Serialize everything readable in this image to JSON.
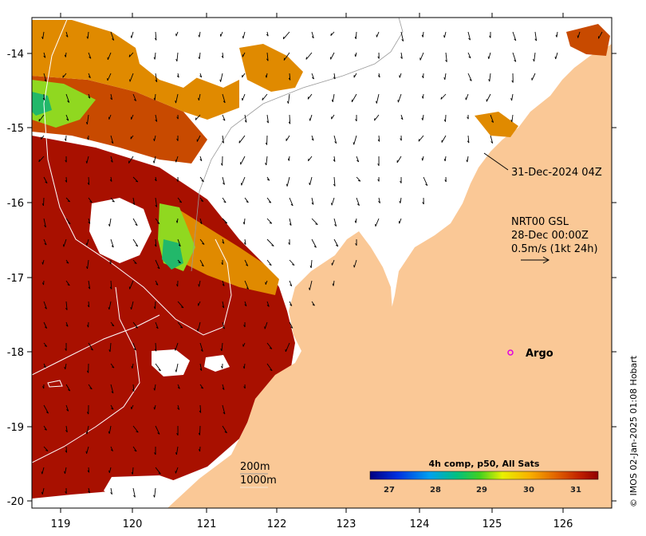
{
  "map": {
    "x_ticks": [
      "119",
      "120",
      "121",
      "122",
      "123",
      "124",
      "125",
      "126"
    ],
    "y_ticks": [
      "-14",
      "-15",
      "-16",
      "-17",
      "-18",
      "-19",
      "-20"
    ],
    "colors": {
      "land": "#fac896",
      "sst_hot": "#a81000",
      "sst_warm": "#c84a00",
      "sst_mid": "#e08a00",
      "sst_cool": "#90d820",
      "sst_cold": "#22b86a",
      "cloud": "#ffffff",
      "argo_marker": "#e000e0"
    }
  },
  "annotations": {
    "track_time": "31-Dec-2024 04Z",
    "current_product": "NRT00 GSL",
    "current_time": "28-Dec 00:00Z",
    "current_scale": "0.5m/s (1kt 24h)",
    "argo": "Argo",
    "isobath_200": "200m",
    "isobath_1000": "1000m"
  },
  "colorbar": {
    "title": "4h comp, p50, All Sats",
    "ticks": [
      "27",
      "28",
      "29",
      "30",
      "31"
    ]
  },
  "credit": "© IMOS 02-Jan-2025 01:08 Hobart"
}
